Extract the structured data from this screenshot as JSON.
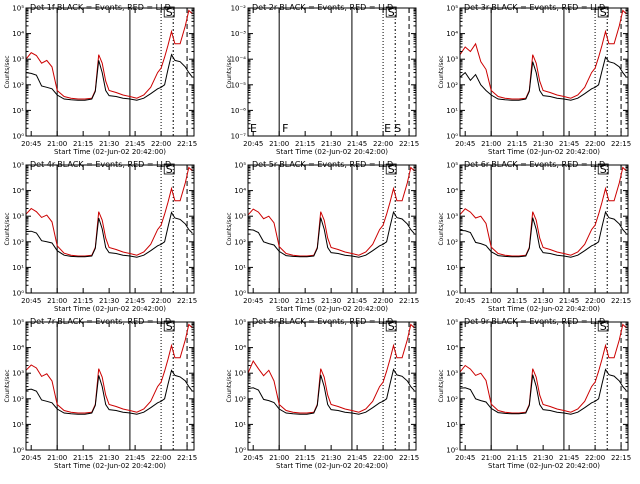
{
  "shared": {
    "xlabel": "Start Time (02-Jun-02 20:42:00)",
    "ylabel": "Counts/sec",
    "xticks": [
      "20:45",
      "21:00",
      "21:15",
      "21:30",
      "21:45",
      "22:00",
      "22:15"
    ],
    "yticks_main": [
      "10⁰",
      "10¹",
      "10²",
      "10³",
      "10⁴",
      "10⁵"
    ],
    "yticks_empty": [
      "10⁻⁷",
      "10⁻⁶",
      "10⁻⁵",
      "10⁻⁴",
      "10⁻³",
      "10⁻²"
    ],
    "legend_events": "BLACK = Events",
    "legend_lld": "RED = LLD",
    "events_color": "#000000",
    "lld_color": "#cc0000"
  },
  "chart_data": [
    {
      "type": "line",
      "title": "Det 1f",
      "empty": false,
      "markers": {
        "F": false,
        "E": false,
        "S": true
      },
      "x_minutes": [
        0,
        3,
        6,
        9,
        12,
        15,
        18,
        22,
        26,
        30,
        34,
        38,
        40,
        42,
        44,
        46,
        48,
        52,
        56,
        60,
        64,
        68,
        72,
        76,
        78,
        80,
        82,
        84,
        86,
        89,
        92,
        94,
        96
      ],
      "events": [
        300,
        280,
        240,
        90,
        80,
        70,
        40,
        28,
        26,
        25,
        25,
        28,
        55,
        900,
        300,
        60,
        38,
        35,
        30,
        28,
        25,
        30,
        45,
        70,
        80,
        100,
        400,
        1500,
        900,
        800,
        500,
        300,
        200
      ],
      "lld": [
        1000,
        1800,
        1400,
        700,
        900,
        500,
        60,
        35,
        30,
        28,
        28,
        30,
        60,
        1500,
        700,
        140,
        60,
        50,
        40,
        35,
        30,
        40,
        80,
        300,
        450,
        1200,
        3500,
        12000,
        4000,
        4000,
        20000,
        80000,
        60000
      ]
    },
    {
      "type": "line",
      "title": "Det 2r",
      "empty": true,
      "markers": {
        "F": true,
        "E": true,
        "S": true
      },
      "x_minutes": [],
      "events": [],
      "lld": []
    },
    {
      "type": "line",
      "title": "Det 3r",
      "empty": false,
      "markers": {
        "F": false,
        "E": false,
        "S": true
      },
      "x_minutes": [
        0,
        3,
        6,
        9,
        12,
        15,
        18,
        22,
        26,
        30,
        34,
        38,
        40,
        42,
        44,
        46,
        48,
        52,
        56,
        60,
        64,
        68,
        72,
        76,
        78,
        80,
        82,
        84,
        86,
        89,
        92,
        94,
        96
      ],
      "events": [
        200,
        300,
        150,
        250,
        100,
        60,
        40,
        28,
        26,
        25,
        25,
        28,
        55,
        800,
        300,
        60,
        38,
        35,
        30,
        28,
        25,
        30,
        45,
        70,
        80,
        100,
        350,
        1200,
        800,
        700,
        500,
        300,
        200
      ],
      "lld": [
        1500,
        3000,
        2000,
        4000,
        800,
        400,
        60,
        35,
        30,
        28,
        28,
        30,
        60,
        1500,
        700,
        140,
        60,
        50,
        40,
        35,
        30,
        40,
        80,
        300,
        450,
        1200,
        3500,
        12000,
        4000,
        4000,
        20000,
        80000,
        60000
      ]
    },
    {
      "type": "line",
      "title": "Det 4r",
      "empty": false,
      "markers": {
        "F": false,
        "E": false,
        "S": true
      },
      "x_minutes": [
        0,
        3,
        6,
        9,
        12,
        15,
        18,
        22,
        26,
        30,
        34,
        38,
        40,
        42,
        44,
        46,
        48,
        52,
        56,
        60,
        64,
        68,
        72,
        76,
        78,
        80,
        82,
        84,
        86,
        89,
        92,
        94,
        96
      ],
      "events": [
        250,
        260,
        220,
        110,
        100,
        90,
        45,
        30,
        27,
        26,
        26,
        28,
        55,
        850,
        320,
        60,
        38,
        35,
        30,
        28,
        25,
        30,
        45,
        70,
        80,
        100,
        380,
        1400,
        850,
        750,
        500,
        300,
        220
      ],
      "lld": [
        1200,
        2000,
        1500,
        900,
        1100,
        600,
        70,
        36,
        30,
        28,
        28,
        30,
        60,
        1500,
        700,
        140,
        60,
        50,
        40,
        35,
        30,
        40,
        80,
        300,
        450,
        1200,
        3500,
        12000,
        4000,
        4000,
        20000,
        80000,
        60000
      ]
    },
    {
      "type": "line",
      "title": "Det 5r",
      "empty": false,
      "markers": {
        "F": false,
        "E": false,
        "S": true
      },
      "x_minutes": [
        0,
        3,
        6,
        9,
        12,
        15,
        18,
        22,
        26,
        30,
        34,
        38,
        40,
        42,
        44,
        46,
        48,
        52,
        56,
        60,
        64,
        68,
        72,
        76,
        78,
        80,
        82,
        84,
        86,
        89,
        92,
        94,
        96
      ],
      "events": [
        300,
        290,
        230,
        100,
        85,
        75,
        42,
        29,
        27,
        26,
        26,
        28,
        55,
        880,
        310,
        60,
        38,
        35,
        30,
        28,
        25,
        30,
        45,
        70,
        80,
        100,
        390,
        1450,
        880,
        780,
        500,
        300,
        210
      ],
      "lld": [
        1100,
        1900,
        1450,
        800,
        1000,
        550,
        65,
        35,
        30,
        28,
        28,
        30,
        60,
        1500,
        700,
        140,
        60,
        50,
        40,
        35,
        30,
        40,
        80,
        300,
        450,
        1200,
        3500,
        12000,
        4000,
        4000,
        20000,
        80000,
        60000
      ]
    },
    {
      "type": "line",
      "title": "Det 6r",
      "empty": false,
      "markers": {
        "F": false,
        "E": false,
        "S": true
      },
      "x_minutes": [
        0,
        3,
        6,
        9,
        12,
        15,
        18,
        22,
        26,
        30,
        34,
        38,
        40,
        42,
        44,
        46,
        48,
        52,
        56,
        60,
        64,
        68,
        72,
        76,
        78,
        80,
        82,
        84,
        86,
        89,
        92,
        94,
        96
      ],
      "events": [
        280,
        270,
        230,
        95,
        85,
        72,
        41,
        29,
        27,
        26,
        26,
        28,
        55,
        870,
        310,
        60,
        38,
        35,
        30,
        28,
        25,
        30,
        45,
        70,
        80,
        100,
        390,
        1450,
        870,
        770,
        500,
        300,
        210
      ],
      "lld": [
        1150,
        1950,
        1450,
        850,
        1000,
        520,
        62,
        35,
        30,
        28,
        28,
        30,
        60,
        1500,
        700,
        140,
        60,
        50,
        40,
        35,
        30,
        40,
        80,
        300,
        450,
        1200,
        3500,
        12000,
        4000,
        4000,
        20000,
        80000,
        60000
      ]
    },
    {
      "type": "line",
      "title": "Det 7r",
      "empty": false,
      "markers": {
        "F": false,
        "E": false,
        "S": true
      },
      "x_minutes": [
        0,
        3,
        6,
        9,
        12,
        15,
        18,
        22,
        26,
        30,
        34,
        38,
        40,
        42,
        44,
        46,
        48,
        52,
        56,
        60,
        64,
        68,
        72,
        76,
        78,
        80,
        82,
        84,
        86,
        89,
        92,
        94,
        96
      ],
      "events": [
        220,
        240,
        200,
        90,
        80,
        70,
        40,
        28,
        26,
        25,
        25,
        28,
        55,
        820,
        300,
        60,
        38,
        35,
        30,
        28,
        25,
        30,
        45,
        70,
        80,
        100,
        370,
        1300,
        820,
        720,
        500,
        300,
        200
      ],
      "lld": [
        1300,
        2100,
        1600,
        750,
        950,
        500,
        60,
        35,
        30,
        28,
        28,
        30,
        60,
        1500,
        700,
        140,
        60,
        50,
        40,
        35,
        30,
        40,
        80,
        300,
        450,
        1200,
        3500,
        12000,
        4000,
        4000,
        20000,
        80000,
        60000
      ]
    },
    {
      "type": "line",
      "title": "Det 8r",
      "empty": false,
      "markers": {
        "F": false,
        "E": false,
        "S": true
      },
      "x_minutes": [
        0,
        3,
        6,
        9,
        12,
        15,
        18,
        22,
        26,
        30,
        34,
        38,
        40,
        42,
        44,
        46,
        48,
        52,
        56,
        60,
        64,
        68,
        72,
        76,
        78,
        80,
        82,
        84,
        86,
        89,
        92,
        94,
        96
      ],
      "events": [
        250,
        270,
        220,
        95,
        85,
        72,
        40,
        28,
        26,
        25,
        25,
        28,
        55,
        860,
        300,
        60,
        38,
        35,
        30,
        28,
        25,
        30,
        45,
        70,
        80,
        100,
        380,
        1400,
        860,
        760,
        500,
        300,
        210
      ],
      "lld": [
        1000,
        3000,
        1500,
        800,
        1300,
        500,
        60,
        35,
        30,
        28,
        28,
        30,
        60,
        1500,
        700,
        140,
        60,
        50,
        40,
        35,
        30,
        40,
        80,
        300,
        450,
        1200,
        3500,
        12000,
        4000,
        4000,
        20000,
        80000,
        60000
      ]
    },
    {
      "type": "line",
      "title": "Det 9r",
      "empty": false,
      "markers": {
        "F": false,
        "E": false,
        "S": true
      },
      "x_minutes": [
        0,
        3,
        6,
        9,
        12,
        15,
        18,
        22,
        26,
        30,
        34,
        38,
        40,
        42,
        44,
        46,
        48,
        52,
        56,
        60,
        64,
        68,
        72,
        76,
        78,
        80,
        82,
        84,
        86,
        89,
        92,
        94,
        96
      ],
      "events": [
        260,
        270,
        230,
        100,
        85,
        75,
        42,
        29,
        27,
        26,
        26,
        28,
        55,
        870,
        310,
        60,
        38,
        35,
        30,
        28,
        25,
        30,
        45,
        70,
        80,
        100,
        380,
        1400,
        870,
        770,
        500,
        300,
        210
      ],
      "lld": [
        1100,
        2000,
        1450,
        820,
        1000,
        520,
        62,
        35,
        30,
        28,
        28,
        30,
        60,
        1500,
        700,
        140,
        60,
        50,
        40,
        35,
        30,
        40,
        80,
        300,
        450,
        1200,
        3500,
        12000,
        4000,
        4000,
        20000,
        80000,
        60000
      ]
    }
  ]
}
